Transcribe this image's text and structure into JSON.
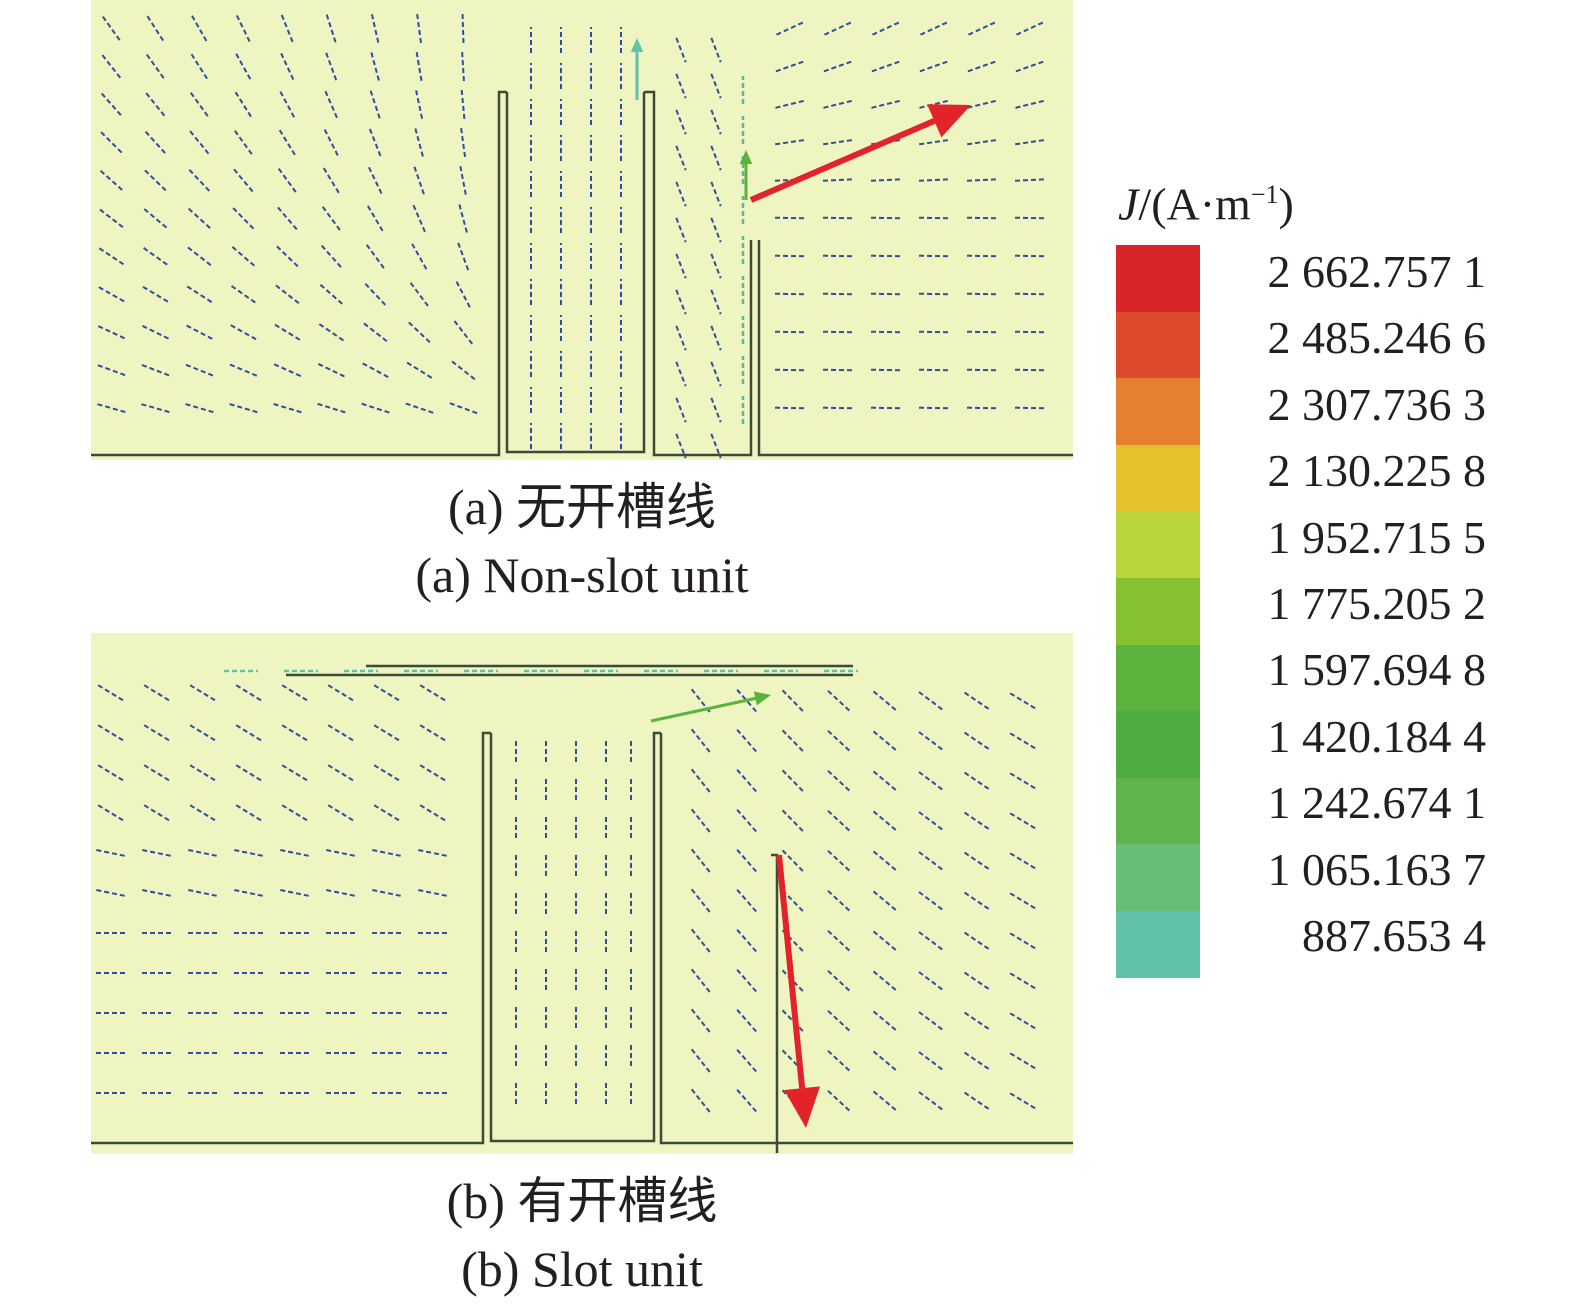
{
  "panels": [
    {
      "caption_zh": "(a) 无开槽线",
      "caption_en": "(a) Non-slot unit"
    },
    {
      "caption_zh": "(b) 有开槽线",
      "caption_en": "(b) Slot unit"
    }
  ],
  "legend": {
    "quantity": "J",
    "unit_prefix": "/(A·m",
    "unit_exponent": "−1",
    "unit_suffix": ")",
    "levels": [
      {
        "label": "2 662.757 1",
        "color": "#d9252a"
      },
      {
        "label": "2 485.246 6",
        "color": "#df4a2c"
      },
      {
        "label": "2 307.736 3",
        "color": "#e5802e"
      },
      {
        "label": "2 130.225 8",
        "color": "#e3c22c"
      },
      {
        "label": "1 952.715 5",
        "color": "#b8d63a"
      },
      {
        "label": "1 775.205 2",
        "color": "#86c132"
      },
      {
        "label": "1 597.694 8",
        "color": "#5cb23c"
      },
      {
        "label": "1 420.184 4",
        "color": "#4fac3f"
      },
      {
        "label": "1 242.674 1",
        "color": "#5fb54c"
      },
      {
        "label": "1 065.163 7",
        "color": "#66bd76"
      },
      {
        "label": "887.653 4",
        "color": "#62c1a9"
      }
    ]
  },
  "colors": {
    "field_background": "#eef5c0",
    "vector": "#2e4ea0",
    "max_arrow": "#e3232a",
    "outline": "#3c4a3a"
  }
}
